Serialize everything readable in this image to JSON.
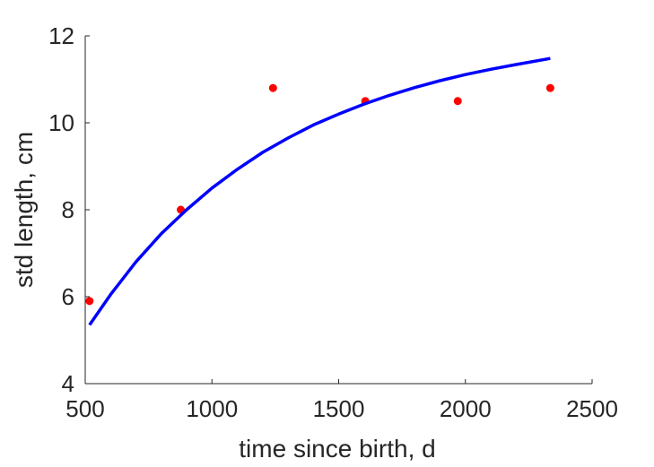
{
  "chart_data": {
    "type": "scatter",
    "title": "",
    "xlabel": "time since birth, d",
    "ylabel": "std length, cm",
    "xlim": [
      500,
      2500
    ],
    "ylim": [
      4,
      12
    ],
    "xticks": [
      500,
      1000,
      1500,
      2000,
      2500
    ],
    "yticks": [
      4,
      6,
      8,
      10,
      12
    ],
    "xtick_labels": [
      "500",
      "1000",
      "1500",
      "2000",
      "2500"
    ],
    "ytick_labels": [
      "4",
      "6",
      "8",
      "10",
      "12"
    ],
    "grid": false,
    "legend": "none",
    "series": [
      {
        "kind": "points",
        "color": "#ff0000",
        "x": [
          517,
          877,
          1241,
          1605,
          1970,
          2335
        ],
        "y": [
          5.9,
          8.0,
          10.8,
          10.5,
          10.5,
          10.8
        ]
      },
      {
        "kind": "line",
        "color": "#0000ff",
        "x": [
          517,
          600,
          700,
          800,
          900,
          1000,
          1100,
          1200,
          1300,
          1400,
          1500,
          1600,
          1700,
          1800,
          1900,
          2000,
          2100,
          2200,
          2335
        ],
        "y": [
          5.35,
          6.05,
          6.8,
          7.45,
          8.0,
          8.5,
          8.93,
          9.32,
          9.65,
          9.95,
          10.2,
          10.43,
          10.63,
          10.81,
          10.97,
          11.11,
          11.23,
          11.34,
          11.48
        ]
      }
    ]
  }
}
